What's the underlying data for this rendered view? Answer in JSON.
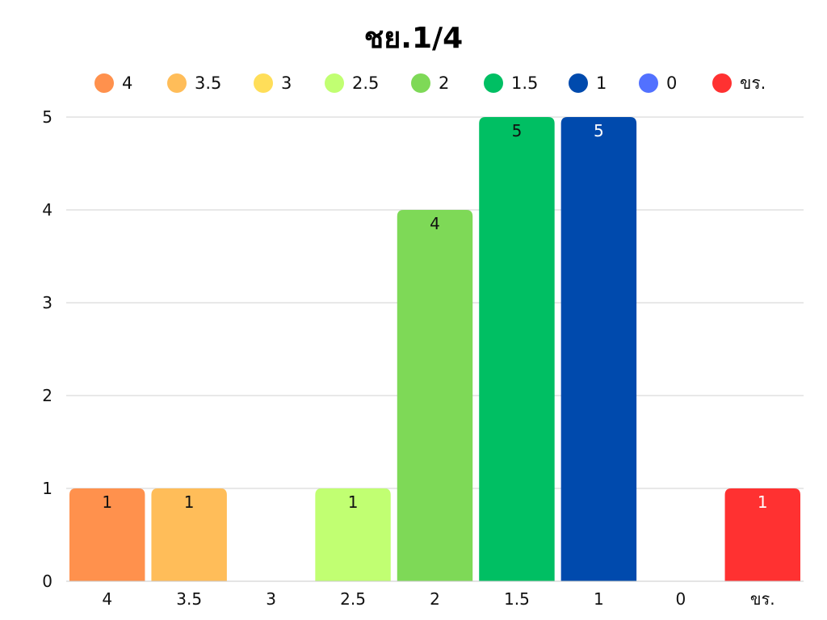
{
  "chart_data": {
    "type": "bar",
    "title": "ชย.1/4",
    "categories": [
      "4",
      "3.5",
      "3",
      "2.5",
      "2",
      "1.5",
      "1",
      "0",
      "ขร."
    ],
    "values": [
      1,
      1,
      0,
      1,
      4,
      5,
      5,
      0,
      1
    ],
    "colors": [
      "#ff914d",
      "#ffbd59",
      "#ffde59",
      "#c1ff72",
      "#7ed957",
      "#00bf63",
      "#004aad",
      "#5271ff",
      "#ff3131"
    ],
    "data_label_colors": [
      "#111111",
      "#111111",
      "#111111",
      "#111111",
      "#111111",
      "#111111",
      "#ffffff",
      "#ffffff",
      "#ffffff"
    ],
    "legend": [
      "4",
      "3.5",
      "3",
      "2.5",
      "2",
      "1.5",
      "1",
      "0",
      "ขร."
    ],
    "legend_position": "top",
    "xlabel": "",
    "ylabel": "",
    "ylim": [
      0,
      5
    ],
    "yticks": [
      0,
      1,
      2,
      3,
      4,
      5
    ],
    "grid": true
  }
}
